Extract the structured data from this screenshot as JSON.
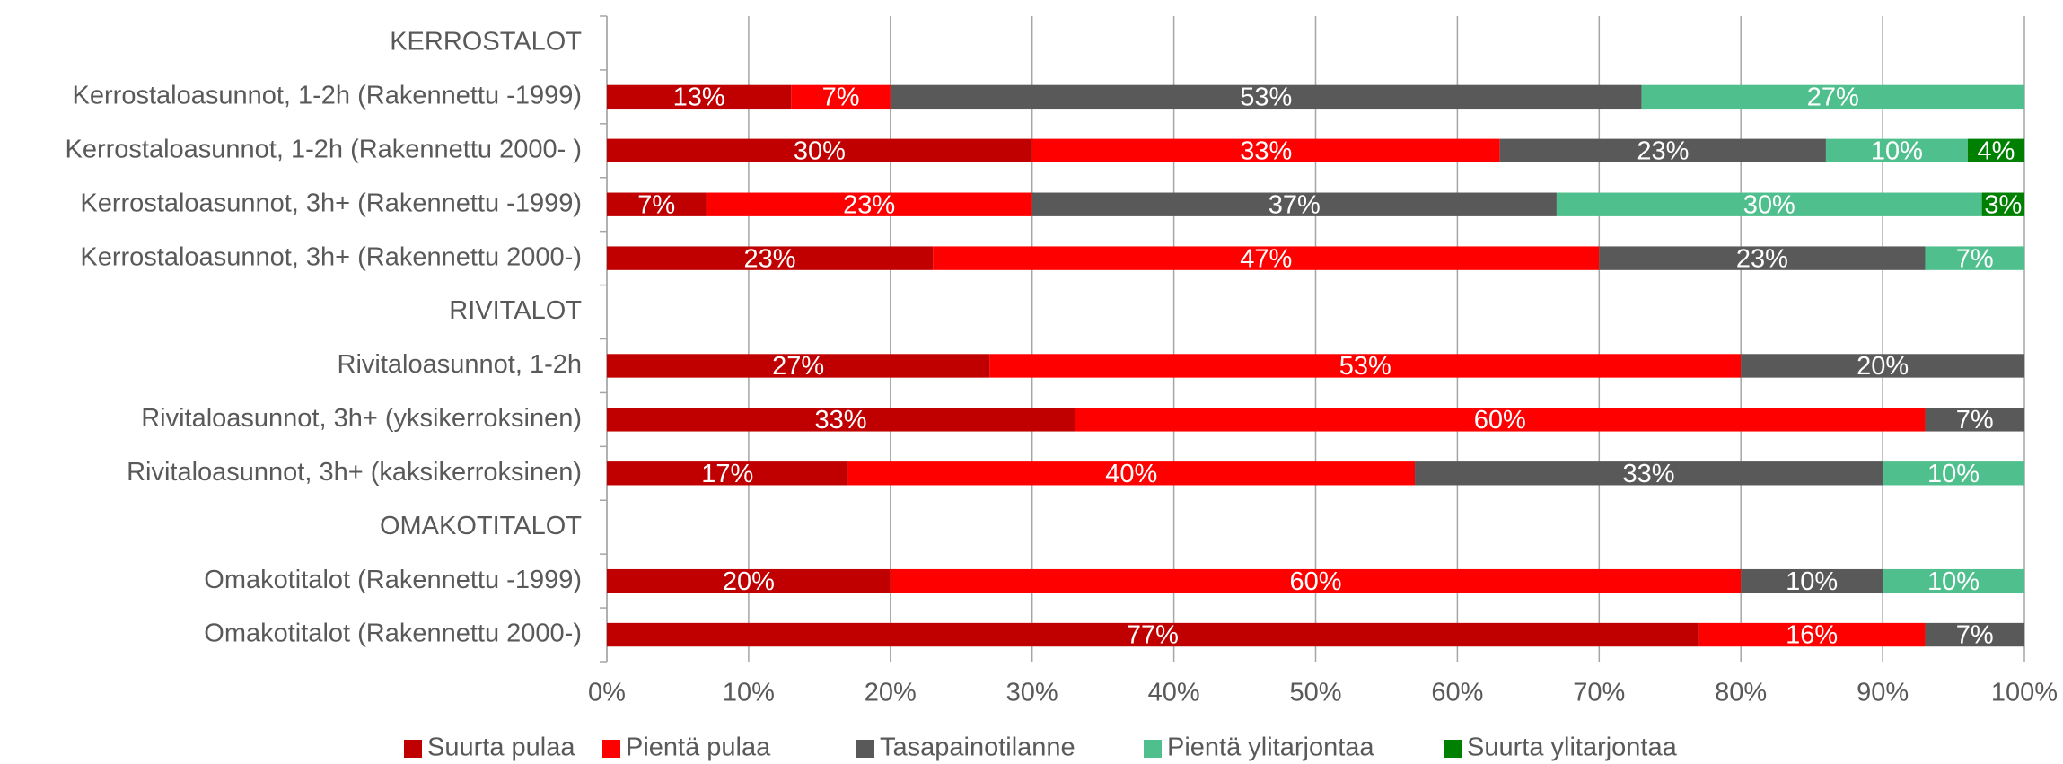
{
  "chart_data": {
    "type": "stacked_barh",
    "categories": [
      "KERROSTALOT",
      "Kerrostaloasunnot, 1-2h (Rakennettu -1999)",
      "Kerrostaloasunnot, 1-2h (Rakennettu 2000- )",
      "Kerrostaloasunnot, 3h+ (Rakennettu -1999)",
      "Kerrostaloasunnot, 3h+ (Rakennettu 2000-)",
      "RIVITALOT",
      "Rivitaloasunnot, 1-2h",
      "Rivitaloasunnot, 3h+ (yksikerroksinen)",
      "Rivitaloasunnot, 3h+ (kaksikerroksinen)",
      "OMAKOTITALOT",
      "Omakotitalot (Rakennettu -1999)",
      "Omakotitalot (Rakennettu 2000-)"
    ],
    "series": [
      {
        "name": "Suurta pulaa",
        "color": "#c00000",
        "values": [
          null,
          13,
          30,
          7,
          23,
          null,
          27,
          33,
          17,
          null,
          20,
          77
        ],
        "value_labels": [
          null,
          "13%",
          "30%",
          "7%",
          "23%",
          null,
          "27%",
          "33%",
          "17%",
          null,
          "20%",
          "77%"
        ]
      },
      {
        "name": "Pientä pulaa",
        "color": "#ff0000",
        "values": [
          null,
          7,
          33,
          23,
          47,
          null,
          53,
          60,
          40,
          null,
          60,
          16
        ],
        "value_labels": [
          null,
          "7%",
          "33%",
          "23%",
          "47%",
          null,
          "53%",
          "60%",
          "40%",
          null,
          "60%",
          "16%"
        ]
      },
      {
        "name": "Tasapainotilanne",
        "color": "#595959",
        "values": [
          null,
          53,
          23,
          37,
          23,
          null,
          20,
          7,
          33,
          null,
          10,
          7
        ],
        "value_labels": [
          null,
          "53%",
          "23%",
          "37%",
          "23%",
          null,
          "20%",
          "7%",
          "33%",
          null,
          "10%",
          "7%"
        ]
      },
      {
        "name": "Pientä ylitarjontaa",
        "color": "#4fc08d",
        "values": [
          null,
          27,
          10,
          30,
          7,
          null,
          null,
          null,
          10,
          null,
          10,
          null
        ],
        "value_labels": [
          null,
          "27%",
          "10%",
          "30%",
          "7%",
          null,
          null,
          null,
          "10%",
          null,
          "10%",
          null
        ]
      },
      {
        "name": "Suurta ylitarjontaa",
        "color": "#008000",
        "values": [
          null,
          null,
          4,
          3,
          null,
          null,
          null,
          null,
          null,
          null,
          null,
          null
        ],
        "value_labels": [
          null,
          null,
          "4%",
          "3%",
          null,
          null,
          null,
          null,
          null,
          null,
          null,
          null
        ]
      }
    ],
    "xlim": [
      0,
      100
    ],
    "xticks": [
      {
        "value": 0,
        "label": "0%"
      },
      {
        "value": 10,
        "label": "10%"
      },
      {
        "value": 20,
        "label": "20%"
      },
      {
        "value": 30,
        "label": "30%"
      },
      {
        "value": 40,
        "label": "40%"
      },
      {
        "value": 50,
        "label": "50%"
      },
      {
        "value": 60,
        "label": "60%"
      },
      {
        "value": 70,
        "label": "70%"
      },
      {
        "value": 80,
        "label": "80%"
      },
      {
        "value": 90,
        "label": "90%"
      },
      {
        "value": 100,
        "label": "100%"
      }
    ],
    "grid": true,
    "legend": "bottom"
  }
}
